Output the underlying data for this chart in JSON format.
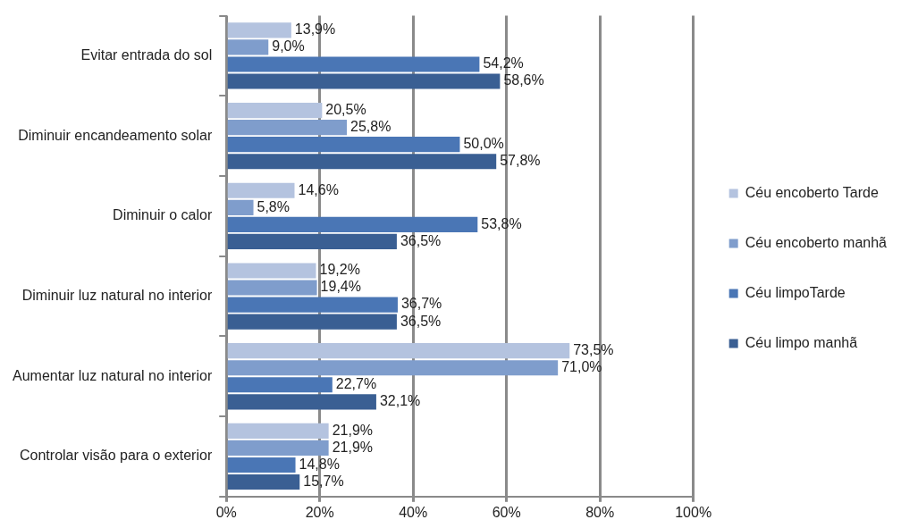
{
  "chart_data": {
    "type": "bar",
    "orientation": "horizontal",
    "categories": [
      "Evitar entrada do sol",
      "Diminuir encandeamento solar",
      "Diminuir o calor",
      "Diminuir luz natural no interior",
      "Aumentar luz natural no interior",
      "Controlar visão para o exterior"
    ],
    "series": [
      {
        "name": "Céu encoberto Tarde",
        "color": "#b4c3df",
        "values": [
          13.9,
          20.5,
          14.6,
          19.2,
          73.5,
          21.9
        ],
        "value_labels": [
          "13,9%",
          "20,5%",
          "14,6%",
          "19,2%",
          "73,5%",
          "21,9%"
        ]
      },
      {
        "name": "Céu encoberto manhã",
        "color": "#7f9dcc",
        "values": [
          9.0,
          25.8,
          5.8,
          19.4,
          71.0,
          21.9
        ],
        "value_labels": [
          "9,0%",
          "25,8%",
          "5,8%",
          "19,4%",
          "71,0%",
          "21,9%"
        ]
      },
      {
        "name": "Céu limpoTarde",
        "color": "#4a76b5",
        "values": [
          54.2,
          50.0,
          53.8,
          36.7,
          22.7,
          14.8
        ],
        "value_labels": [
          "54,2%",
          "50,0%",
          "53,8%",
          "36,7%",
          "22,7%",
          "14,8%"
        ]
      },
      {
        "name": "Céu limpo manhã",
        "color": "#3a5f93",
        "values": [
          58.6,
          57.8,
          36.5,
          36.5,
          32.1,
          15.7
        ],
        "value_labels": [
          "58,6%",
          "57,8%",
          "36,5%",
          "36,5%",
          "32,1%",
          "15,7%"
        ]
      }
    ],
    "xlim": [
      0,
      100
    ],
    "xticks": [
      {
        "value": 0,
        "label": "0%"
      },
      {
        "value": 20,
        "label": "20%"
      },
      {
        "value": 40,
        "label": "40%"
      },
      {
        "value": 60,
        "label": "60%"
      },
      {
        "value": 80,
        "label": "80%"
      },
      {
        "value": 100,
        "label": "100%"
      }
    ],
    "grid": "x",
    "legend": "right"
  }
}
